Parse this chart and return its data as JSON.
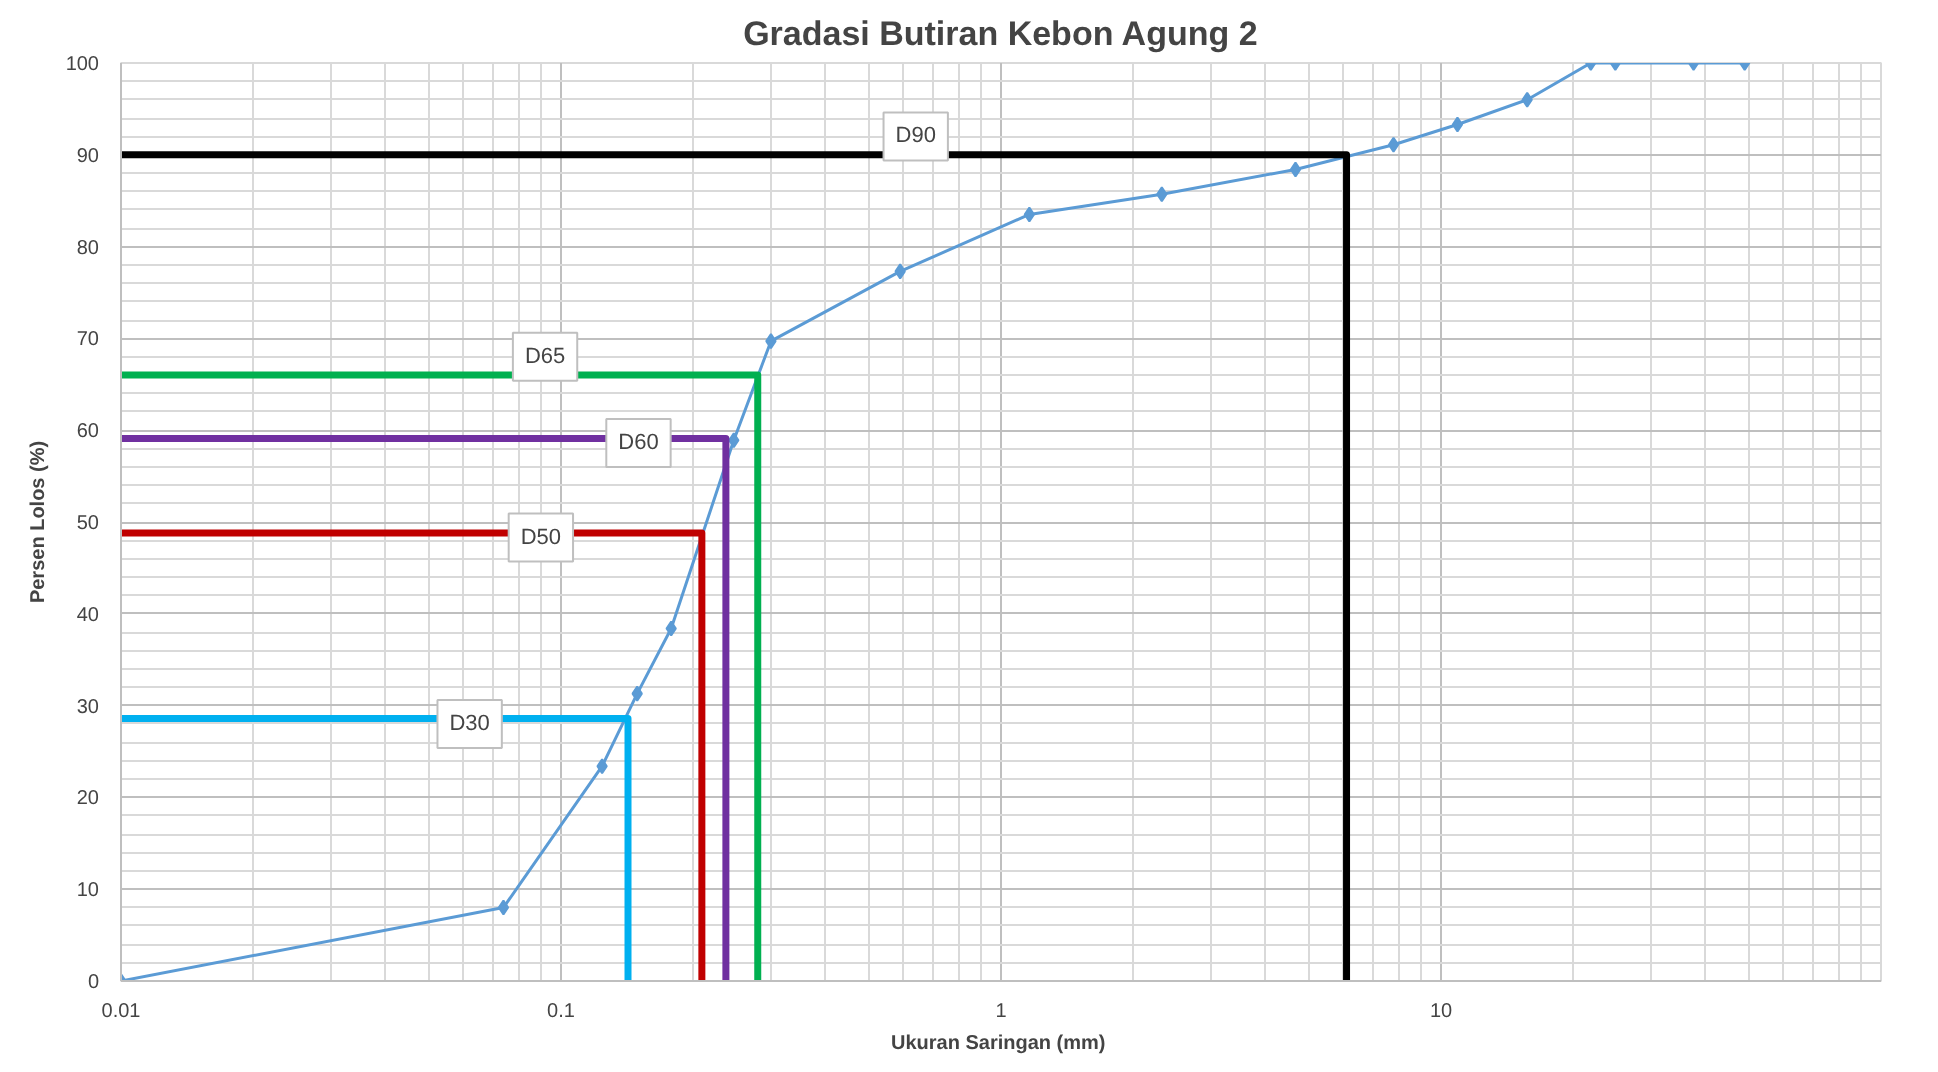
{
  "chart_data": {
    "type": "line",
    "title": "Gradasi Butiran Kebon Agung 2",
    "xlabel": "Ukuran Saringan  (mm)",
    "ylabel": "Persen Lolos (%)",
    "log": "x",
    "xlim": [
      0.01,
      100
    ],
    "xticks": [
      0.01,
      0.1,
      1,
      10
    ],
    "ylim": [
      0,
      100
    ],
    "yticks": [
      0,
      10,
      20,
      30,
      40,
      50,
      60,
      70,
      80,
      90,
      100
    ],
    "grid": true,
    "series": [
      {
        "color": "#5b9bd5",
        "marker": "diamond",
        "x": [
          0.01,
          0.074,
          0.124,
          0.149,
          0.178,
          0.247,
          0.3,
          0.59,
          1.16,
          2.32,
          4.67,
          7.8,
          10.9,
          15.7,
          21.9,
          24.9,
          37.5,
          49
        ],
        "values": [
          0,
          8,
          23.4,
          31.3,
          38.4,
          58.9,
          69.7,
          77.3,
          83.5,
          85.7,
          88.4,
          91.1,
          93.3,
          96,
          100,
          100,
          100,
          100
        ]
      },
      {
        "color": "#000000",
        "marker": "none",
        "x": [
          0.01,
          6.1,
          6.1
        ],
        "values": [
          90,
          90,
          0
        ]
      },
      {
        "color": "#00b050",
        "marker": "none",
        "x": [
          0.01,
          0.28,
          0.28
        ],
        "values": [
          66,
          66,
          0
        ]
      },
      {
        "color": "#7030a0",
        "marker": "none",
        "x": [
          0.01,
          0.237,
          0.237
        ],
        "values": [
          59.1,
          59.1,
          0
        ]
      },
      {
        "color": "#c00000",
        "marker": "none",
        "x": [
          0.01,
          0.209,
          0.209
        ],
        "values": [
          48.8,
          48.8,
          0
        ]
      },
      {
        "color": "#00b0f0",
        "marker": "none",
        "x": [
          0.01,
          0.142,
          0.142
        ],
        "values": [
          28.6,
          28.6,
          0
        ]
      }
    ],
    "annotations": [
      {
        "text": "D90",
        "x": 0.64,
        "y": 92
      },
      {
        "text": "D65",
        "x": 0.092,
        "y": 68
      },
      {
        "text": "D60",
        "x": 0.15,
        "y": 58.6
      },
      {
        "text": "D50",
        "x": 0.09,
        "y": 48.3
      },
      {
        "text": "D30",
        "x": 0.062,
        "y": 28
      }
    ]
  }
}
